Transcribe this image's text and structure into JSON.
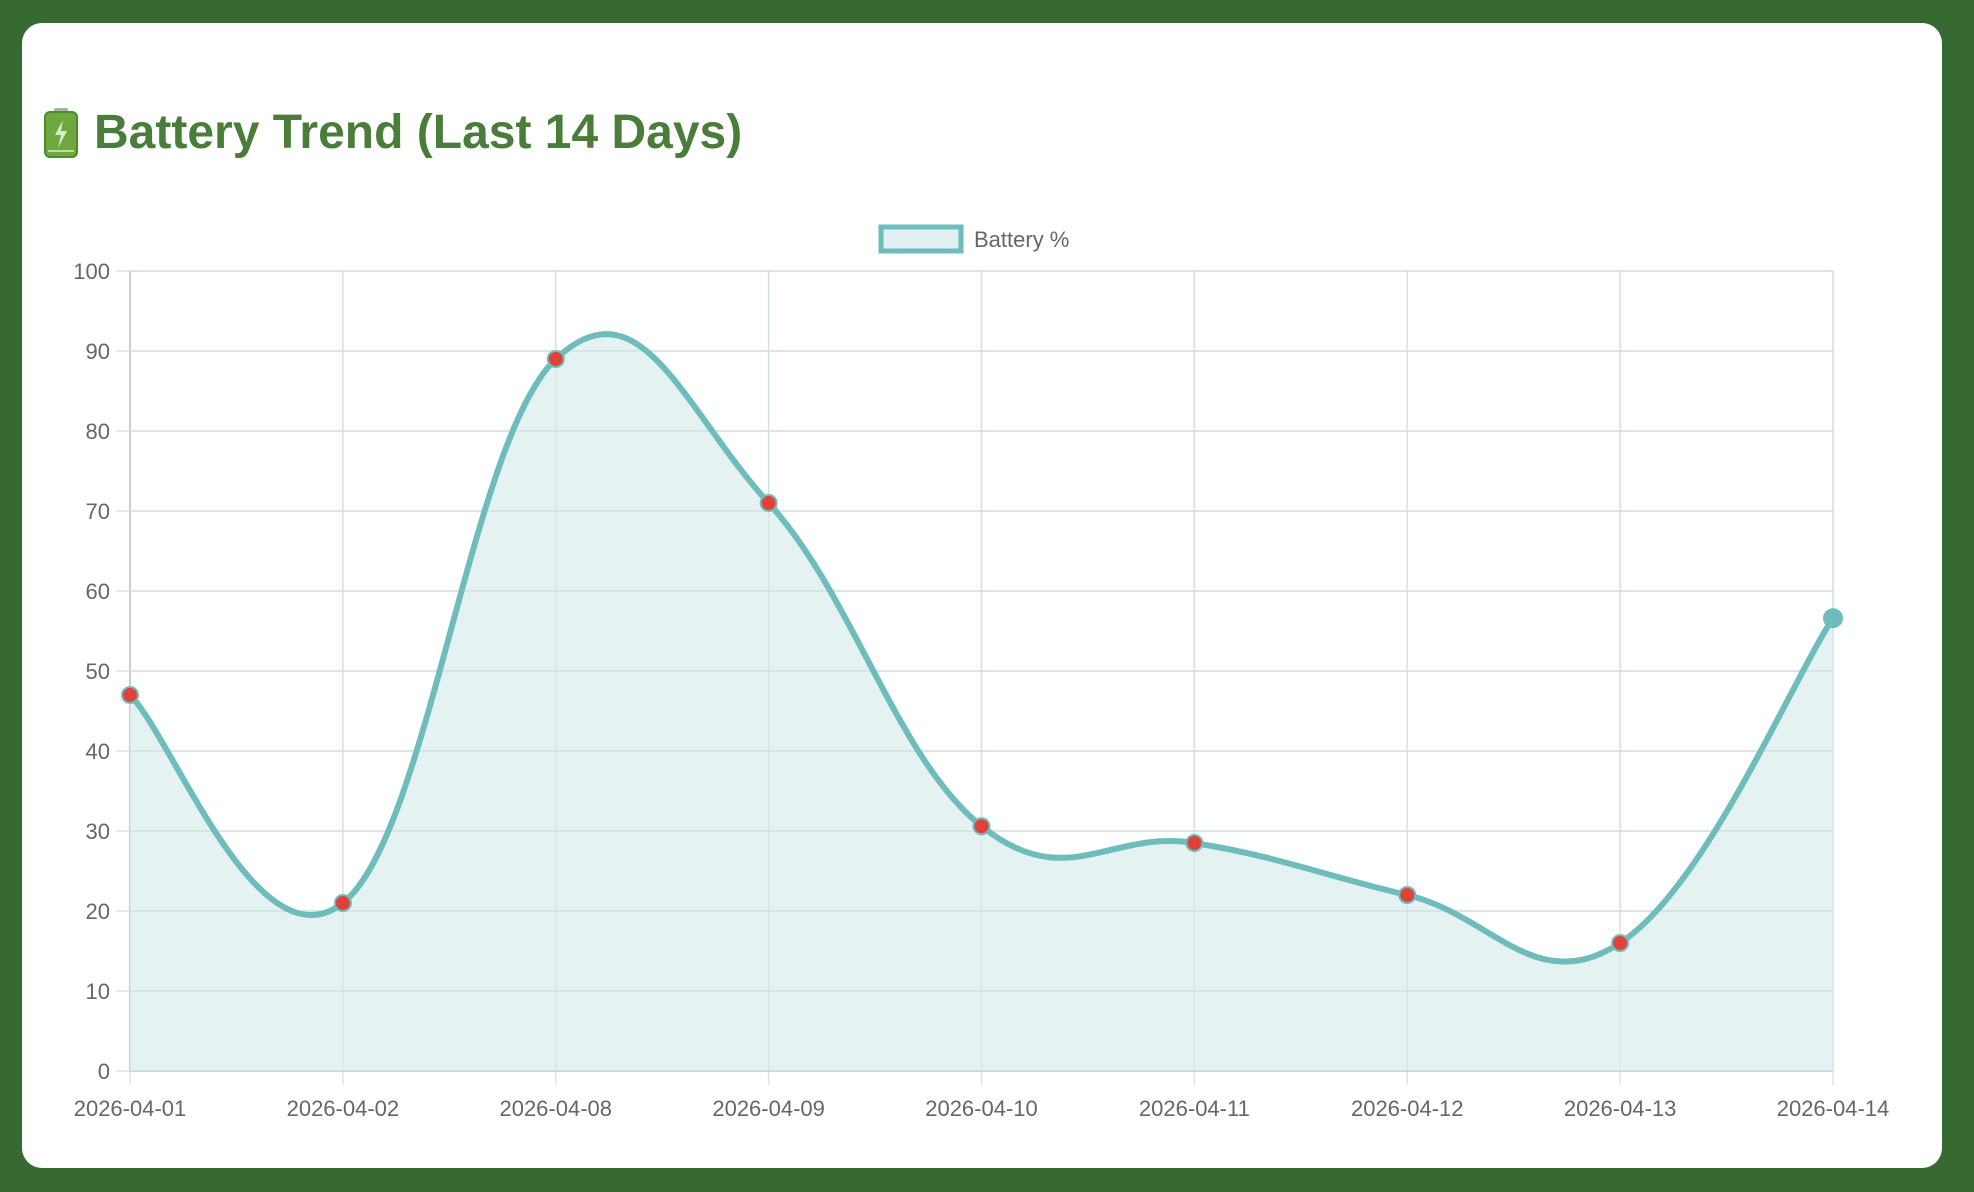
{
  "page": {
    "title": "Battery Trend (Last 14 Days)",
    "title_icon": "battery-icon"
  },
  "colors": {
    "background": "#366a30",
    "card": "#ffffff",
    "title": "#4a7c3a",
    "line": "#6fbcbc",
    "fill": "#e1f1f1",
    "point": "#e0413a",
    "grid": "#e2e2e2",
    "tick_text": "#666666"
  },
  "legend": {
    "label": "Battery %"
  },
  "chart_data": {
    "type": "line",
    "title": "Battery Trend (Last 14 Days)",
    "xlabel": "",
    "ylabel": "",
    "categories": [
      "2026-04-01",
      "2026-04-02",
      "2026-04-08",
      "2026-04-09",
      "2026-04-10",
      "2026-04-11",
      "2026-04-12",
      "2026-04-13",
      "2026-04-14"
    ],
    "series": [
      {
        "name": "Battery %",
        "values": [
          47,
          21,
          89,
          71,
          30.6,
          28.5,
          22,
          16,
          56.6
        ],
        "fill": true,
        "smooth": true
      }
    ],
    "ylim": [
      0,
      100
    ],
    "yticks": [
      0,
      10,
      20,
      30,
      40,
      50,
      60,
      70,
      80,
      90,
      100
    ],
    "grid": true,
    "legend_position": "top"
  }
}
